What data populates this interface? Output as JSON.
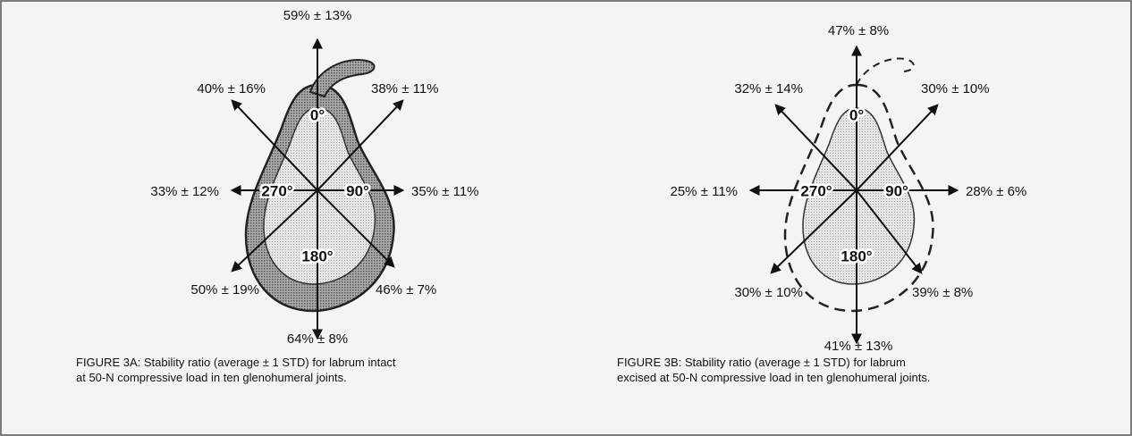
{
  "panels": [
    {
      "labels": [
        "59% ± 13%",
        "38% ± 11%",
        "35% ± 11%",
        "46% ± 7%",
        "64% ± 8%",
        "50% ± 19%",
        "33% ± 12%",
        "40% ± 16%"
      ],
      "angles": [
        "0°",
        "90°",
        "180°",
        "270°"
      ],
      "caption": [
        "FIGURE 3A:  Stability ratio (average ± 1 STD) for labrum intact",
        "at 50-N compressive load in ten glenohumeral joints."
      ]
    },
    {
      "labels": [
        "47% ± 8%",
        "30% ± 10%",
        "28% ± 6%",
        "39% ± 8%",
        "41% ± 13%",
        "30% ± 10%",
        "25% ± 11%",
        "32% ± 14%"
      ],
      "angles": [
        "0°",
        "90°",
        "180°",
        "270°"
      ],
      "caption": [
        "FIGURE 3B:  Stability ratio (average ± 1 STD) for labrum",
        "excised at 50-N compressive load in ten glenohumeral joints."
      ]
    }
  ]
}
